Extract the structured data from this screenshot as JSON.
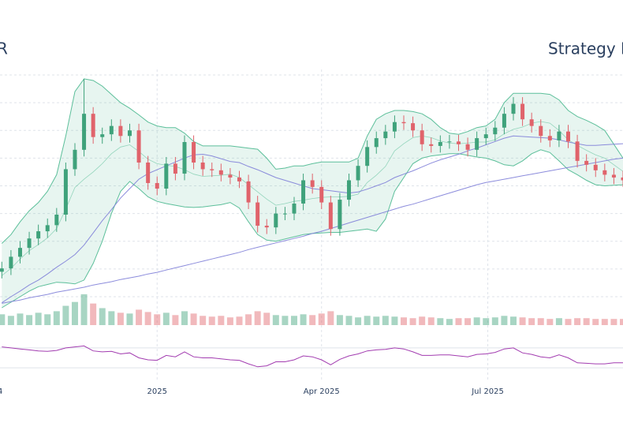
{
  "chart_data": {
    "type": "candlestick",
    "title": "R",
    "subtitle": "Strategy In",
    "x": [
      -85,
      -80,
      -75,
      -70,
      -65,
      -60,
      -55,
      -50,
      -45,
      -40,
      -35,
      -30,
      -25,
      -20,
      -15,
      -10,
      -5,
      0,
      5,
      10,
      15,
      20,
      25,
      30,
      35,
      40,
      45,
      50,
      55,
      60,
      65,
      70,
      75,
      80,
      85,
      90,
      95,
      100,
      105,
      110,
      115,
      120,
      125,
      130,
      135,
      140,
      145,
      150,
      155,
      160,
      165,
      170,
      175,
      180,
      185,
      190,
      195,
      200,
      205,
      210,
      215,
      220,
      225,
      230,
      235,
      240,
      245,
      250,
      255
    ],
    "open": [
      195,
      201,
      222,
      238,
      255,
      268,
      279,
      298,
      380,
      415,
      480,
      438,
      443,
      458,
      440,
      450,
      392,
      355,
      345,
      390,
      372,
      429,
      392,
      380,
      378,
      370,
      365,
      358,
      320,
      278,
      275,
      300,
      300,
      318,
      360,
      348,
      320,
      272,
      325,
      360,
      386,
      420,
      436,
      448,
      465,
      463,
      450,
      425,
      422,
      429,
      430,
      425,
      415,
      436,
      443,
      455,
      480,
      498,
      470,
      458,
      440,
      432,
      448,
      430,
      395,
      388,
      378,
      370,
      365
    ],
    "high": [
      213,
      234,
      250,
      267,
      280,
      291,
      310,
      392,
      427,
      543,
      492,
      455,
      470,
      470,
      462,
      462,
      404,
      367,
      402,
      402,
      441,
      441,
      404,
      392,
      390,
      382,
      377,
      370,
      332,
      290,
      312,
      312,
      330,
      372,
      372,
      360,
      332,
      337,
      372,
      398,
      432,
      448,
      460,
      477,
      477,
      475,
      462,
      437,
      441,
      442,
      442,
      437,
      448,
      455,
      467,
      492,
      510,
      510,
      482,
      470,
      452,
      460,
      460,
      442,
      407,
      400,
      390,
      382,
      377
    ],
    "low": [
      183,
      189,
      210,
      226,
      243,
      256,
      267,
      286,
      368,
      403,
      426,
      426,
      431,
      428,
      428,
      380,
      343,
      333,
      333,
      360,
      360,
      380,
      368,
      366,
      358,
      353,
      346,
      308,
      266,
      263,
      263,
      288,
      288,
      306,
      336,
      308,
      260,
      260,
      313,
      348,
      374,
      408,
      424,
      436,
      451,
      438,
      413,
      410,
      410,
      417,
      413,
      403,
      403,
      424,
      431,
      443,
      468,
      458,
      446,
      428,
      420,
      420,
      418,
      383,
      376,
      366,
      358,
      353,
      348
    ],
    "close": [
      201,
      222,
      238,
      255,
      268,
      279,
      298,
      380,
      415,
      480,
      438,
      443,
      458,
      440,
      450,
      392,
      355,
      345,
      390,
      372,
      429,
      392,
      380,
      378,
      370,
      365,
      358,
      320,
      278,
      275,
      300,
      300,
      318,
      360,
      348,
      320,
      272,
      325,
      360,
      386,
      420,
      436,
      448,
      465,
      463,
      450,
      425,
      422,
      429,
      430,
      425,
      415,
      436,
      443,
      455,
      480,
      498,
      470,
      458,
      440,
      432,
      448,
      430,
      395,
      388,
      378,
      370,
      365,
      360
    ],
    "bb_upper": [
      246,
      262,
      285,
      305,
      320,
      340,
      370,
      440,
      520,
      543,
      540,
      530,
      515,
      500,
      490,
      478,
      465,
      458,
      455,
      455,
      445,
      430,
      422,
      422,
      422,
      422,
      420,
      418,
      416,
      400,
      380,
      382,
      386,
      386,
      390,
      393,
      393,
      393,
      393,
      400,
      440,
      470,
      480,
      486,
      486,
      484,
      480,
      470,
      455,
      445,
      443,
      448,
      455,
      458,
      470,
      500,
      517,
      517,
      517,
      517,
      515,
      505,
      486,
      475,
      468,
      460,
      450,
      425,
      400
    ],
    "bb_lower": [
      130,
      140,
      150,
      160,
      168,
      172,
      176,
      175,
      173,
      180,
      210,
      250,
      300,
      340,
      358,
      345,
      330,
      322,
      318,
      315,
      312,
      311,
      312,
      314,
      316,
      320,
      310,
      285,
      262,
      252,
      250,
      254,
      258,
      262,
      264,
      265,
      266,
      266,
      268,
      270,
      272,
      268,
      290,
      340,
      365,
      390,
      400,
      404,
      406,
      408,
      408,
      405,
      402,
      400,
      395,
      388,
      386,
      395,
      408,
      415,
      410,
      395,
      379,
      370,
      360,
      352,
      350,
      351,
      352
    ],
    "bb_mid": [
      188,
      201,
      218,
      233,
      244,
      256,
      273,
      308,
      347,
      362,
      375,
      390,
      408,
      420,
      424,
      412,
      398,
      390,
      387,
      385,
      379,
      371,
      367,
      368,
      369,
      371,
      365,
      352,
      339,
      326,
      315,
      318,
      322,
      324,
      327,
      329,
      330,
      330,
      331,
      335,
      356,
      369,
      385,
      413,
      426,
      437,
      440,
      437,
      431,
      427,
      426,
      427,
      429,
      429,
      433,
      444,
      452,
      456,
      463,
      466,
      463,
      450,
      433,
      423,
      414,
      406,
      400,
      388,
      376
    ],
    "ma50": [
      139,
      150,
      160,
      171,
      180,
      191,
      203,
      214,
      226,
      243,
      265,
      287,
      307,
      328,
      345,
      362,
      372,
      379,
      386,
      393,
      400,
      406,
      407,
      404,
      399,
      394,
      392,
      385,
      379,
      372,
      365,
      360,
      355,
      350,
      345,
      343,
      341,
      339,
      337,
      339,
      344,
      350,
      356,
      365,
      371,
      377,
      384,
      391,
      397,
      402,
      407,
      413,
      418,
      424,
      430,
      436,
      440,
      439,
      438,
      437,
      436,
      433,
      429,
      426,
      423,
      423,
      424,
      425,
      426
    ],
    "ma200": [
      138,
      141,
      144,
      148,
      151,
      154,
      158,
      161,
      164,
      167,
      171,
      174,
      177,
      181,
      184,
      187,
      191,
      194,
      198,
      202,
      206,
      210,
      214,
      218,
      222,
      226,
      230,
      235,
      239,
      243,
      247,
      251,
      255,
      259,
      264,
      268,
      273,
      278,
      283,
      288,
      293,
      298,
      303,
      308,
      313,
      317,
      322,
      327,
      332,
      337,
      342,
      347,
      352,
      356,
      359,
      362,
      365,
      368,
      371,
      374,
      377,
      380,
      383,
      386,
      389,
      392,
      395,
      398,
      400
    ],
    "volume": [
      14,
      12,
      15,
      13,
      16,
      14,
      18,
      25,
      30,
      40,
      28,
      22,
      18,
      16,
      15,
      20,
      17,
      14,
      16,
      13,
      18,
      15,
      12,
      11,
      12,
      10,
      11,
      14,
      18,
      16,
      13,
      12,
      12,
      14,
      13,
      15,
      18,
      13,
      12,
      10,
      12,
      11,
      12,
      11,
      10,
      9,
      11,
      10,
      9,
      8,
      9,
      9,
      10,
      9,
      10,
      12,
      11,
      10,
      9,
      9,
      8,
      9,
      8,
      9,
      9,
      8,
      8,
      8,
      8
    ],
    "rsi": [
      72,
      70,
      68,
      66,
      64,
      63,
      65,
      70,
      72,
      74,
      64,
      62,
      63,
      58,
      60,
      50,
      46,
      45,
      55,
      52,
      62,
      52,
      50,
      50,
      48,
      46,
      45,
      38,
      32,
      34,
      42,
      42,
      46,
      54,
      52,
      46,
      36,
      47,
      54,
      58,
      64,
      66,
      67,
      70,
      68,
      62,
      55,
      55,
      56,
      56,
      54,
      52,
      57,
      58,
      61,
      68,
      70,
      60,
      57,
      52,
      50,
      56,
      50,
      40,
      39,
      38,
      38,
      40,
      40
    ],
    "xlim": [
      -86,
      255
    ],
    "xticks": [
      {
        "value": -92,
        "label": "4"
      },
      {
        "value": 0,
        "label": "2025"
      },
      {
        "value": 90,
        "label": "Apr 2025"
      },
      {
        "value": 181,
        "label": "Jul 2025"
      }
    ],
    "ylim": [
      130,
      560
    ],
    "yticks": [
      150,
      200,
      250,
      300,
      350,
      400,
      450,
      500,
      550
    ],
    "volume_ylim": [
      0,
      45
    ],
    "rsi_ylim": [
      0,
      100
    ],
    "rsi_yticks": [
      30,
      70
    ],
    "grid": true,
    "up_color": "#3fa27b",
    "down_color": "#e0636b",
    "band_color": "#5cbf9a",
    "ma_color": "#7f7fd8",
    "rsi_color": "#a23cb0"
  }
}
